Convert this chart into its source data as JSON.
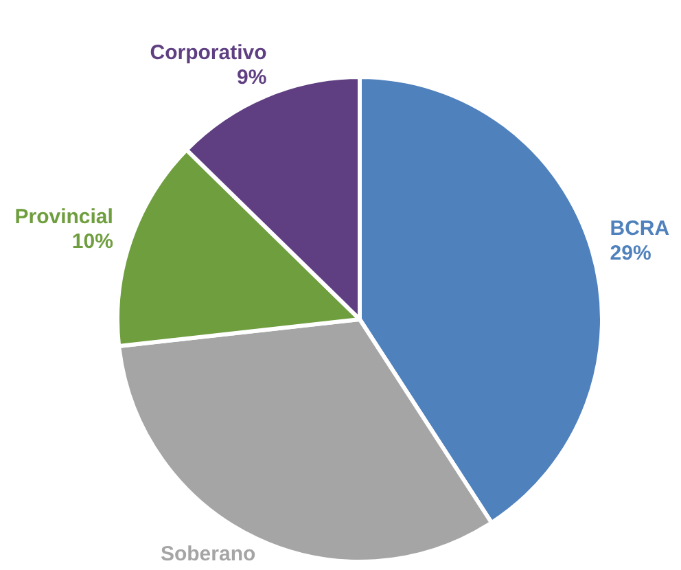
{
  "chart_data": {
    "type": "pie",
    "categories": [
      "BCRA",
      "Soberano",
      "Provincial",
      "Corporativo"
    ],
    "values": [
      29,
      23,
      10,
      9
    ],
    "value_labels": [
      "29%",
      null,
      "10%",
      "9%"
    ],
    "colors": [
      "#4f81bd",
      "#a5a5a5",
      "#6f9e3f",
      "#5f3f82"
    ],
    "legend": false
  }
}
